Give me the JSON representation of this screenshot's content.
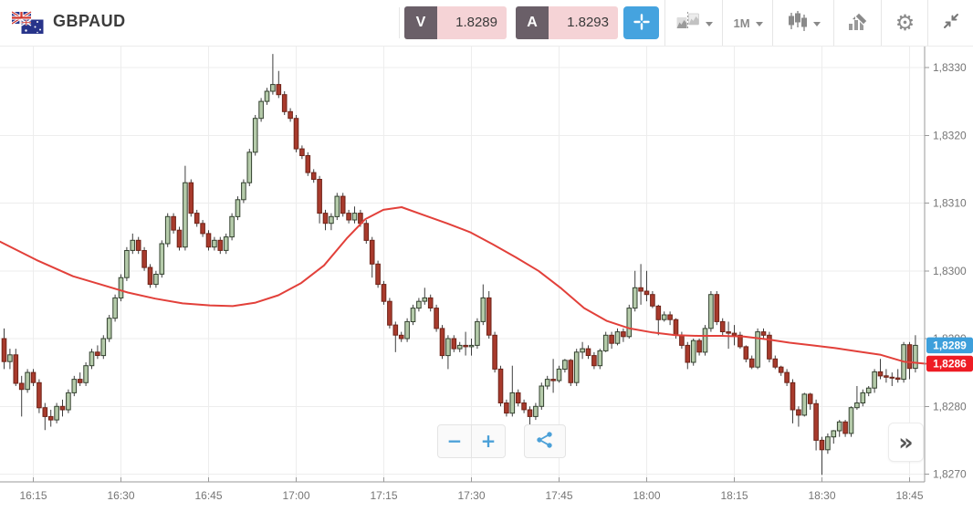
{
  "header": {
    "symbol": "GBPAUD",
    "bid": {
      "label": "V",
      "value": "1.8289"
    },
    "ask": {
      "label": "A",
      "value": "1.8293"
    },
    "timeframe": "1M"
  },
  "icons": {
    "gear": "⚙"
  },
  "controls": {
    "zoom_out": "−",
    "zoom_in": "+",
    "expand": "»"
  },
  "colors": {
    "up_fill": "#b5cbaa",
    "up_stroke": "#32402e",
    "down_fill": "#a83a2c",
    "down_stroke": "#6e2318",
    "wick": "#3e3e3e",
    "ma_line": "#e2403a",
    "grid": "#ededed",
    "axis_line": "#9a9a9a",
    "axis_text": "#757575",
    "tag_last_bg": "#3d9fdb",
    "tag_ma_bg": "#ee1c24",
    "accent_blue": "#45a3df",
    "icon_gray": "#8a8a8a",
    "badge_bg": "#6a5f68",
    "badge_value_bg": "#f5d3d6"
  },
  "chart_data": {
    "type": "candlestick",
    "symbol": "GBPAUD",
    "interval": "1m",
    "price_base": 1.82,
    "price_unit": 0.0001,
    "y_axis": {
      "min": 1.827,
      "max": 1.833,
      "decimal_separator": ",",
      "ticks": [
        {
          "v": 130,
          "label": "1,8330"
        },
        {
          "v": 120,
          "label": "1,8320"
        },
        {
          "v": 110,
          "label": "1,8310"
        },
        {
          "v": 100,
          "label": "1,8300"
        },
        {
          "v": 90,
          "label": "1,8290"
        },
        {
          "v": 80,
          "label": "1,8280"
        },
        {
          "v": 70,
          "label": "1,8270"
        }
      ]
    },
    "x_axis": {
      "start": "16:10",
      "end": "18:46",
      "ticks": [
        {
          "i": 5,
          "label": "16:15"
        },
        {
          "i": 20,
          "label": "16:30"
        },
        {
          "i": 35,
          "label": "16:45"
        },
        {
          "i": 50,
          "label": "17:00"
        },
        {
          "i": 65,
          "label": "17:15"
        },
        {
          "i": 80,
          "label": "17:30"
        },
        {
          "i": 95,
          "label": "17:45"
        },
        {
          "i": 110,
          "label": "18:00"
        },
        {
          "i": 125,
          "label": "18:15"
        },
        {
          "i": 140,
          "label": "18:30"
        },
        {
          "i": 155,
          "label": "18:45"
        }
      ]
    },
    "price_tags": {
      "last": {
        "label": "1,8289",
        "v": 89
      },
      "ma": {
        "label": "1,8286",
        "v": 86.3
      }
    },
    "ma": {
      "name": "moving-average",
      "points": [
        [
          0,
          104.3
        ],
        [
          40,
          101.6
        ],
        [
          80,
          99.2
        ],
        [
          110,
          98
        ],
        [
          140,
          96.8
        ],
        [
          170,
          95.9
        ],
        [
          200,
          95.2
        ],
        [
          230,
          94.9
        ],
        [
          255,
          94.8
        ],
        [
          280,
          95.3
        ],
        [
          305,
          96.4
        ],
        [
          330,
          98.2
        ],
        [
          355,
          100.8
        ],
        [
          380,
          104.8
        ],
        [
          400,
          107.6
        ],
        [
          420,
          109
        ],
        [
          440,
          109.4
        ],
        [
          465,
          108.2
        ],
        [
          490,
          107
        ],
        [
          515,
          105.7
        ],
        [
          540,
          103.9
        ],
        [
          565,
          102
        ],
        [
          590,
          100
        ],
        [
          615,
          97.4
        ],
        [
          640,
          94.5
        ],
        [
          665,
          92.6
        ],
        [
          690,
          91.5
        ],
        [
          715,
          90.9
        ],
        [
          740,
          90.5
        ],
        [
          765,
          90.4
        ],
        [
          790,
          90.4
        ],
        [
          815,
          90.3
        ],
        [
          840,
          89.9
        ],
        [
          865,
          89.4
        ],
        [
          890,
          89
        ],
        [
          915,
          88.6
        ],
        [
          940,
          88.1
        ],
        [
          965,
          87.6
        ],
        [
          990,
          86.6
        ],
        [
          1014,
          86.3
        ]
      ]
    },
    "candles": [
      [
        "16:10",
        90,
        91.5,
        85.5,
        86.6
      ],
      [
        "16:11",
        86.6,
        88.5,
        85.5,
        87.6
      ],
      [
        "16:12",
        87.6,
        88.5,
        83,
        83.4
      ],
      [
        "16:13",
        83.4,
        84.5,
        78.5,
        82.5
      ],
      [
        "16:14",
        82.5,
        85.5,
        82,
        85
      ],
      [
        "16:15",
        85,
        85.5,
        83,
        83.5
      ],
      [
        "16:16",
        83.5,
        84,
        79,
        79.8
      ],
      [
        "16:17",
        79.8,
        80.5,
        76.5,
        78.5
      ],
      [
        "16:18",
        78.5,
        79.5,
        77,
        78
      ],
      [
        "16:19",
        78,
        80.5,
        77.5,
        80
      ],
      [
        "16:20",
        80,
        81,
        78.5,
        79.5
      ],
      [
        "16:21",
        79.5,
        82.5,
        79,
        82
      ],
      [
        "16:22",
        82,
        84.5,
        81.5,
        84
      ],
      [
        "16:23",
        84,
        85,
        83,
        83.5
      ],
      [
        "16:24",
        83.5,
        86.5,
        83,
        86
      ],
      [
        "16:25",
        86,
        88.5,
        85.5,
        88
      ],
      [
        "16:26",
        88,
        89,
        87,
        87.5
      ],
      [
        "16:27",
        87.5,
        90.5,
        87,
        90
      ],
      [
        "16:28",
        90,
        93.5,
        89.5,
        93
      ],
      [
        "16:29",
        93,
        96.5,
        92.5,
        96
      ],
      [
        "16:30",
        96,
        99.5,
        95.5,
        99
      ],
      [
        "16:31",
        99,
        103.5,
        98.5,
        103
      ],
      [
        "16:32",
        103,
        105.5,
        102.5,
        104.5
      ],
      [
        "16:33",
        104.5,
        105,
        102.5,
        103
      ],
      [
        "16:34",
        103,
        103.5,
        100,
        100.5
      ],
      [
        "16:35",
        100.5,
        101,
        97.5,
        98
      ],
      [
        "16:36",
        98,
        100,
        97.5,
        99.5
      ],
      [
        "16:37",
        99.5,
        104.5,
        99,
        104
      ],
      [
        "16:38",
        104,
        108.5,
        103.5,
        108
      ],
      [
        "16:39",
        108,
        108.5,
        105.5,
        106
      ],
      [
        "16:40",
        106,
        106.5,
        103,
        103.5
      ],
      [
        "16:41",
        103.5,
        115.5,
        103,
        113
      ],
      [
        "16:42",
        113,
        113.5,
        108,
        108.5
      ],
      [
        "16:43",
        108.5,
        109,
        106.5,
        107
      ],
      [
        "16:44",
        107,
        107.5,
        105,
        105.5
      ],
      [
        "16:45",
        105.5,
        106,
        103,
        103.5
      ],
      [
        "16:46",
        103.5,
        105,
        103,
        104.5
      ],
      [
        "16:47",
        104.5,
        105,
        102.5,
        103
      ],
      [
        "16:48",
        103,
        105.5,
        102.5,
        105
      ],
      [
        "16:49",
        105,
        108.5,
        104.5,
        108
      ],
      [
        "16:50",
        108,
        111,
        107.5,
        110.5
      ],
      [
        "16:51",
        110.5,
        113.5,
        110,
        113
      ],
      [
        "16:52",
        113,
        118,
        112.5,
        117.5
      ],
      [
        "16:53",
        117.5,
        123,
        117,
        122.5
      ],
      [
        "16:54",
        122.5,
        125.5,
        122,
        125
      ],
      [
        "16:55",
        125,
        127,
        124.5,
        126.5
      ],
      [
        "16:56",
        126.5,
        132,
        126,
        127.5
      ],
      [
        "16:57",
        127.5,
        129.5,
        125.5,
        126
      ],
      [
        "16:58",
        126,
        126.5,
        123,
        123.5
      ],
      [
        "16:59",
        123.5,
        124,
        122,
        122.5
      ],
      [
        "17:00",
        122.5,
        123,
        117.5,
        118
      ],
      [
        "17:01",
        118,
        118.5,
        116.5,
        117
      ],
      [
        "17:02",
        117,
        117.5,
        114,
        114.5
      ],
      [
        "17:03",
        114.5,
        115,
        113,
        113.5
      ],
      [
        "17:04",
        113.5,
        114,
        107,
        108.5
      ],
      [
        "17:05",
        108.5,
        109,
        106,
        107
      ],
      [
        "17:06",
        107,
        108.5,
        106,
        108
      ],
      [
        "17:07",
        108,
        111.5,
        107.5,
        111
      ],
      [
        "17:08",
        111,
        111.5,
        108,
        108.5
      ],
      [
        "17:09",
        108.5,
        109,
        107,
        107.5
      ],
      [
        "17:10",
        107.5,
        109.5,
        107,
        108.5
      ],
      [
        "17:11",
        108.5,
        109,
        106.5,
        107
      ],
      [
        "17:12",
        107,
        107.5,
        104,
        104.5
      ],
      [
        "17:13",
        104.5,
        105,
        99,
        101
      ],
      [
        "17:14",
        101,
        101.5,
        97.5,
        98
      ],
      [
        "17:15",
        98,
        98.5,
        95,
        95.5
      ],
      [
        "17:16",
        95.5,
        96,
        91.5,
        92
      ],
      [
        "17:17",
        92,
        92.5,
        88,
        90.5
      ],
      [
        "17:18",
        90.5,
        91,
        89.5,
        90
      ],
      [
        "17:19",
        90,
        93,
        89.5,
        92.5
      ],
      [
        "17:20",
        92.5,
        95,
        92,
        94.5
      ],
      [
        "17:21",
        94.5,
        96,
        94,
        95.5
      ],
      [
        "17:22",
        95.5,
        97.5,
        95,
        96
      ],
      [
        "17:23",
        96,
        96.5,
        94,
        94.5
      ],
      [
        "17:24",
        94.5,
        95,
        91,
        91.5
      ],
      [
        "17:25",
        91.5,
        92,
        87,
        87.5
      ],
      [
        "17:26",
        87.5,
        90.5,
        85.5,
        90
      ],
      [
        "17:27",
        90,
        90.5,
        88,
        88.5
      ],
      [
        "17:28",
        88.5,
        89.5,
        88,
        89
      ],
      [
        "17:29",
        89,
        91,
        87.5,
        88.8
      ],
      [
        "17:30",
        88.8,
        90,
        87.5,
        89
      ],
      [
        "17:31",
        89,
        93,
        88.5,
        92.5
      ],
      [
        "17:32",
        92.5,
        98,
        92,
        96
      ],
      [
        "17:33",
        96,
        97,
        90,
        90.5
      ],
      [
        "17:34",
        90.5,
        91,
        85,
        85.5
      ],
      [
        "17:35",
        85.5,
        86,
        80,
        80.5
      ],
      [
        "17:36",
        80.5,
        81,
        78.5,
        79
      ],
      [
        "17:37",
        79,
        86,
        78.5,
        82
      ],
      [
        "17:38",
        82,
        82.5,
        80,
        80.5
      ],
      [
        "17:39",
        80.5,
        81,
        79,
        79.5
      ],
      [
        "17:40",
        79.5,
        80,
        76.5,
        78.5
      ],
      [
        "17:41",
        78.5,
        80.5,
        78,
        80
      ],
      [
        "17:42",
        80,
        83.5,
        79.5,
        83
      ],
      [
        "17:43",
        83,
        84.5,
        82.5,
        84
      ],
      [
        "17:44",
        84,
        87,
        82,
        83.8
      ],
      [
        "17:45",
        83.8,
        86,
        83.5,
        85.5
      ],
      [
        "17:46",
        85.5,
        87,
        85,
        86.8
      ],
      [
        "17:47",
        86.8,
        87,
        83,
        83.5
      ],
      [
        "17:48",
        83.5,
        88.5,
        83,
        88
      ],
      [
        "17:49",
        88,
        89.5,
        87,
        88.5
      ],
      [
        "17:50",
        88.5,
        89,
        87,
        87.5
      ],
      [
        "17:51",
        87.5,
        88,
        85.5,
        86
      ],
      [
        "17:52",
        86,
        88.5,
        85.5,
        88.2
      ],
      [
        "17:53",
        88.2,
        91,
        88,
        90.5
      ],
      [
        "17:54",
        90.5,
        91,
        88.5,
        89.3
      ],
      [
        "17:55",
        89.3,
        91.5,
        89,
        91
      ],
      [
        "17:56",
        91,
        91.5,
        89.5,
        90.3
      ],
      [
        "17:57",
        90.3,
        95,
        90,
        94.5
      ],
      [
        "17:58",
        94.5,
        100,
        94,
        97.5
      ],
      [
        "17:59",
        97.5,
        101,
        95,
        97
      ],
      [
        "18:00",
        97,
        100,
        95.5,
        96.5
      ],
      [
        "18:01",
        96.5,
        97,
        94.5,
        94.8
      ],
      [
        "18:02",
        94.8,
        95,
        90.5,
        92.8
      ],
      [
        "18:03",
        92.8,
        94,
        92.5,
        93.5
      ],
      [
        "18:04",
        93.5,
        94,
        92,
        92.8
      ],
      [
        "18:05",
        92.8,
        93,
        90,
        90.5
      ],
      [
        "18:06",
        90.5,
        91,
        88.5,
        89
      ],
      [
        "18:07",
        89,
        89.5,
        85.5,
        86.5
      ],
      [
        "18:08",
        86.5,
        90,
        86,
        89.7
      ],
      [
        "18:09",
        89.7,
        90,
        87.5,
        88
      ],
      [
        "18:10",
        88,
        92,
        87.5,
        91.5
      ],
      [
        "18:11",
        91.5,
        97,
        91,
        96.5
      ],
      [
        "18:12",
        96.5,
        97,
        92,
        92.5
      ],
      [
        "18:13",
        92.5,
        93,
        90.5,
        91
      ],
      [
        "18:14",
        91,
        92.5,
        88.5,
        90.8
      ],
      [
        "18:15",
        90.8,
        92,
        89,
        90.5
      ],
      [
        "18:16",
        90.5,
        91,
        88.5,
        88.8
      ],
      [
        "18:17",
        88.8,
        89,
        86.5,
        87
      ],
      [
        "18:18",
        87,
        87.5,
        85.5,
        85.8
      ],
      [
        "18:19",
        85.8,
        91.5,
        85.5,
        91
      ],
      [
        "18:20",
        91,
        91.5,
        90,
        90.5
      ],
      [
        "18:21",
        90.5,
        91,
        86.5,
        87
      ],
      [
        "18:22",
        87,
        87.5,
        85.5,
        85.8
      ],
      [
        "18:23",
        85.8,
        86,
        84.5,
        85
      ],
      [
        "18:24",
        85,
        85.5,
        83,
        83.5
      ],
      [
        "18:25",
        83.5,
        84,
        77.5,
        79.5
      ],
      [
        "18:26",
        79.5,
        80,
        77,
        78.7
      ],
      [
        "18:27",
        78.7,
        82,
        78.5,
        81.8
      ],
      [
        "18:28",
        81.8,
        82,
        79.5,
        80.4
      ],
      [
        "18:29",
        80.4,
        81,
        73.5,
        75
      ],
      [
        "18:30",
        75,
        75.5,
        69.9,
        73.6
      ],
      [
        "18:31",
        73.6,
        76,
        73,
        75.5
      ],
      [
        "18:32",
        75.5,
        76.5,
        74.5,
        76.4
      ],
      [
        "18:33",
        76.4,
        78,
        75.5,
        77.7
      ],
      [
        "18:34",
        77.7,
        78,
        75.5,
        76
      ],
      [
        "18:35",
        76,
        80,
        75.5,
        79.8
      ],
      [
        "18:36",
        79.8,
        83,
        79.5,
        80.5
      ],
      [
        "18:37",
        80.5,
        82.5,
        80,
        82
      ],
      [
        "18:38",
        82,
        83,
        81.5,
        82.7
      ],
      [
        "18:39",
        82.7,
        85.5,
        82,
        85.1
      ],
      [
        "18:40",
        85.1,
        87,
        84,
        84.5
      ],
      [
        "18:41",
        84.5,
        85.5,
        83.5,
        84.3
      ],
      [
        "18:42",
        84.3,
        85,
        83,
        84.2
      ],
      [
        "18:43",
        84.2,
        85.5,
        83.5,
        84
      ],
      [
        "18:44",
        84,
        89.5,
        83.5,
        89.1
      ],
      [
        "18:45",
        89.1,
        89.5,
        84,
        85.6
      ],
      [
        "18:46",
        85.6,
        90.5,
        85,
        89
      ]
    ]
  }
}
